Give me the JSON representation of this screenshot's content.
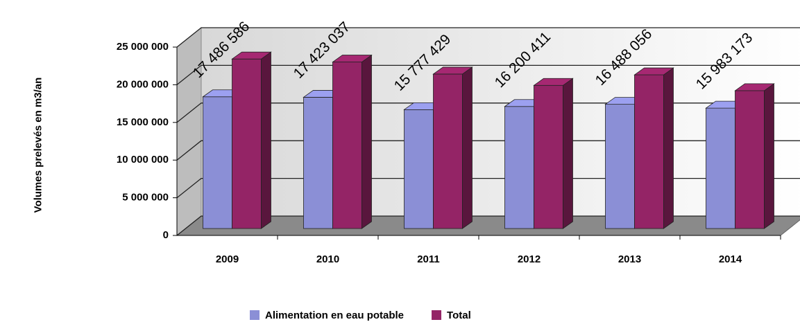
{
  "chart_data": {
    "type": "bar3d",
    "y_label": "Volumes prelevés en m3/an",
    "categories": [
      "2009",
      "2010",
      "2011",
      "2012",
      "2013",
      "2014"
    ],
    "series": [
      {
        "name": "Alimentation en eau potable",
        "color": "#8b8fd6",
        "values": [
          17486586,
          17423037,
          15777429,
          16200411,
          16488056,
          15983173
        ],
        "value_labels": [
          "17 486 586",
          "17 423 037",
          "15 777 429",
          "16 200 411",
          "16 488 056",
          "15 983 173"
        ]
      },
      {
        "name": "Total",
        "color": "#942466",
        "values": [
          22500000,
          22100000,
          20500000,
          19000000,
          20400000,
          18300000
        ]
      }
    ],
    "ylim": [
      0,
      25000000
    ],
    "yticks": [
      {
        "value": 0,
        "label": "0"
      },
      {
        "value": 5000000,
        "label": "5 000 000"
      },
      {
        "value": 10000000,
        "label": "10 000 000"
      },
      {
        "value": 15000000,
        "label": "15 000 000"
      },
      {
        "value": 20000000,
        "label": "20 000 000"
      },
      {
        "value": 25000000,
        "label": "25 000 000"
      }
    ],
    "grid": true
  }
}
